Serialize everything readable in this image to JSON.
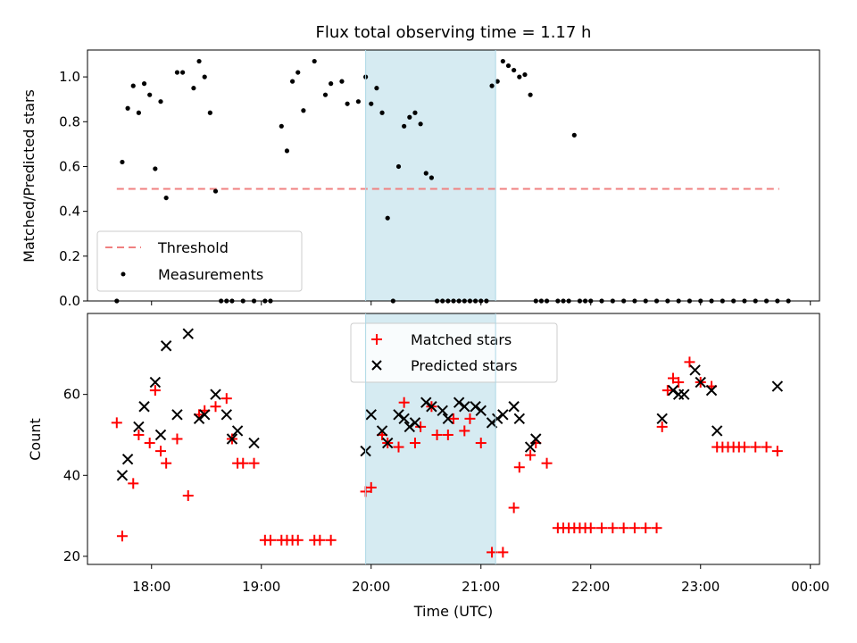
{
  "chart_data": [
    {
      "type": "scatter",
      "title": "Flux total observing time = 1.17 h",
      "xlabel": "",
      "ylabel": "Matched/Predicted stars",
      "xlim": [
        "17:25",
        "00:05"
      ],
      "ylim": [
        0,
        1.12
      ],
      "x_ticks": [
        "18:00",
        "19:00",
        "20:00",
        "21:00",
        "22:00",
        "23:00",
        "00:00"
      ],
      "y_ticks": [
        "0.0",
        "0.2",
        "0.4",
        "0.6",
        "0.8",
        "1.0"
      ],
      "legend_position": "lower-left",
      "shaded_interval": [
        "19:57",
        "21:08"
      ],
      "shade_color": "#add8e6",
      "threshold": {
        "name": "Threshold",
        "value": 0.5,
        "x_start": "17:41",
        "x_end": "23:43",
        "color": "#f08080",
        "style": "dashed"
      },
      "series": [
        {
          "name": "Measurements",
          "color": "#000000",
          "marker": "dot",
          "x": [
            "17:41",
            "17:44",
            "17:47",
            "17:50",
            "17:53",
            "17:56",
            "17:59",
            "18:02",
            "18:05",
            "18:08",
            "18:14",
            "18:17",
            "18:23",
            "18:26",
            "18:29",
            "18:32",
            "18:35",
            "18:38",
            "18:41",
            "18:44",
            "18:50",
            "18:56",
            "19:02",
            "19:05",
            "19:11",
            "19:14",
            "19:17",
            "19:20",
            "19:23",
            "19:29",
            "19:35",
            "19:38",
            "19:44",
            "19:47",
            "19:53",
            "19:57",
            "20:00",
            "20:03",
            "20:06",
            "20:09",
            "20:12",
            "20:15",
            "20:18",
            "20:21",
            "20:24",
            "20:27",
            "20:30",
            "20:33",
            "20:36",
            "20:39",
            "20:42",
            "20:45",
            "20:48",
            "20:51",
            "20:54",
            "20:57",
            "21:00",
            "21:03",
            "21:06",
            "21:09",
            "21:12",
            "21:15",
            "21:18",
            "21:21",
            "21:24",
            "21:27",
            "21:30",
            "21:33",
            "21:36",
            "21:42",
            "21:45",
            "21:48",
            "21:51",
            "21:54",
            "21:57",
            "22:00",
            "22:06",
            "22:12",
            "22:18",
            "22:24",
            "22:30",
            "22:36",
            "22:42",
            "22:48",
            "22:54",
            "23:00",
            "23:06",
            "23:12",
            "23:18",
            "23:24",
            "23:30",
            "23:36",
            "23:42",
            "23:48"
          ],
          "y": [
            0.0,
            0.62,
            0.86,
            0.96,
            0.84,
            0.97,
            0.92,
            0.59,
            0.89,
            0.46,
            1.02,
            1.02,
            0.95,
            1.07,
            1.0,
            0.84,
            0.49,
            0.0,
            0.0,
            0.0,
            0.0,
            0.0,
            0.0,
            0.0,
            0.78,
            0.67,
            0.98,
            1.02,
            0.85,
            1.07,
            0.92,
            0.97,
            0.98,
            0.88,
            0.89,
            1.0,
            0.88,
            0.95,
            0.84,
            0.37,
            0.0,
            0.6,
            0.78,
            0.82,
            0.84,
            0.79,
            0.57,
            0.55,
            0.0,
            0.0,
            0.0,
            0.0,
            0.0,
            0.0,
            0.0,
            0.0,
            0.0,
            0.0,
            0.96,
            0.98,
            1.07,
            1.05,
            1.03,
            1.0,
            1.01,
            0.92,
            0.0,
            0.0,
            0.0,
            0.0,
            0.0,
            0.0,
            0.74,
            0.0,
            0.0,
            0.0,
            0.0,
            0.0,
            0.0,
            0.0,
            0.0,
            0.0,
            0.0,
            0.0,
            0.0,
            0.0,
            0.0,
            0.0,
            0.0,
            0.0,
            0.0,
            0.0,
            0.0,
            0.0
          ]
        }
      ]
    },
    {
      "type": "scatter",
      "title": "",
      "xlabel": "Time (UTC)",
      "ylabel": "Count",
      "xlim": [
        "17:25",
        "00:05"
      ],
      "ylim": [
        18,
        80
      ],
      "x_ticks": [
        "18:00",
        "19:00",
        "20:00",
        "21:00",
        "22:00",
        "23:00",
        "00:00"
      ],
      "y_ticks": [
        "20",
        "40",
        "60"
      ],
      "legend_position": "upper-center",
      "shaded_interval": [
        "19:57",
        "21:08"
      ],
      "shade_color": "#add8e6",
      "series": [
        {
          "name": "Matched stars",
          "color": "#ff0000",
          "marker": "plus",
          "points": [
            [
              "17:41",
              53
            ],
            [
              "17:44",
              25
            ],
            [
              "17:50",
              38
            ],
            [
              "17:53",
              50
            ],
            [
              "17:59",
              48
            ],
            [
              "18:02",
              61
            ],
            [
              "18:05",
              46
            ],
            [
              "18:08",
              43
            ],
            [
              "18:14",
              49
            ],
            [
              "18:20",
              35
            ],
            [
              "18:26",
              55
            ],
            [
              "18:29",
              56
            ],
            [
              "18:35",
              57
            ],
            [
              "18:41",
              59
            ],
            [
              "18:44",
              49
            ],
            [
              "18:47",
              43
            ],
            [
              "18:50",
              43
            ],
            [
              "18:56",
              43
            ],
            [
              "19:02",
              24
            ],
            [
              "19:05",
              24
            ],
            [
              "19:11",
              24
            ],
            [
              "19:14",
              24
            ],
            [
              "19:17",
              24
            ],
            [
              "19:20",
              24
            ],
            [
              "19:29",
              24
            ],
            [
              "19:32",
              24
            ],
            [
              "19:38",
              24
            ],
            [
              "19:57",
              36
            ],
            [
              "20:00",
              37
            ],
            [
              "20:06",
              50
            ],
            [
              "20:09",
              48
            ],
            [
              "20:15",
              47
            ],
            [
              "20:18",
              58
            ],
            [
              "20:24",
              48
            ],
            [
              "20:27",
              52
            ],
            [
              "20:33",
              57
            ],
            [
              "20:36",
              50
            ],
            [
              "20:42",
              50
            ],
            [
              "20:45",
              54
            ],
            [
              "20:51",
              51
            ],
            [
              "20:54",
              54
            ],
            [
              "21:00",
              48
            ],
            [
              "21:06",
              21
            ],
            [
              "21:12",
              21
            ],
            [
              "21:18",
              32
            ],
            [
              "21:21",
              42
            ],
            [
              "21:27",
              45
            ],
            [
              "21:30",
              48
            ],
            [
              "21:36",
              43
            ],
            [
              "21:42",
              27
            ],
            [
              "21:45",
              27
            ],
            [
              "21:48",
              27
            ],
            [
              "21:51",
              27
            ],
            [
              "21:54",
              27
            ],
            [
              "21:57",
              27
            ],
            [
              "22:00",
              27
            ],
            [
              "22:06",
              27
            ],
            [
              "22:12",
              27
            ],
            [
              "22:18",
              27
            ],
            [
              "22:24",
              27
            ],
            [
              "22:30",
              27
            ],
            [
              "22:36",
              27
            ],
            [
              "22:39",
              52
            ],
            [
              "22:42",
              61
            ],
            [
              "22:45",
              64
            ],
            [
              "22:48",
              63
            ],
            [
              "22:54",
              68
            ],
            [
              "23:00",
              63
            ],
            [
              "23:06",
              62
            ],
            [
              "23:09",
              47
            ],
            [
              "23:12",
              47
            ],
            [
              "23:15",
              47
            ],
            [
              "23:18",
              47
            ],
            [
              "23:21",
              47
            ],
            [
              "23:24",
              47
            ],
            [
              "23:30",
              47
            ],
            [
              "23:36",
              47
            ],
            [
              "23:42",
              46
            ]
          ]
        },
        {
          "name": "Predicted stars",
          "color": "#000000",
          "marker": "x",
          "points": [
            [
              "17:44",
              40
            ],
            [
              "17:47",
              44
            ],
            [
              "17:53",
              52
            ],
            [
              "17:56",
              57
            ],
            [
              "18:02",
              63
            ],
            [
              "18:05",
              50
            ],
            [
              "18:08",
              72
            ],
            [
              "18:14",
              55
            ],
            [
              "18:20",
              75
            ],
            [
              "18:26",
              54
            ],
            [
              "18:29",
              55
            ],
            [
              "18:35",
              60
            ],
            [
              "18:41",
              55
            ],
            [
              "18:44",
              49
            ],
            [
              "18:47",
              51
            ],
            [
              "18:56",
              48
            ],
            [
              "19:57",
              46
            ],
            [
              "20:00",
              55
            ],
            [
              "20:06",
              51
            ],
            [
              "20:09",
              48
            ],
            [
              "20:15",
              55
            ],
            [
              "20:18",
              54
            ],
            [
              "20:21",
              52
            ],
            [
              "20:24",
              53
            ],
            [
              "20:30",
              58
            ],
            [
              "20:33",
              57
            ],
            [
              "20:39",
              56
            ],
            [
              "20:42",
              54
            ],
            [
              "20:48",
              58
            ],
            [
              "20:51",
              57
            ],
            [
              "20:57",
              57
            ],
            [
              "21:00",
              56
            ],
            [
              "21:06",
              53
            ],
            [
              "21:09",
              54
            ],
            [
              "21:12",
              55
            ],
            [
              "21:18",
              57
            ],
            [
              "21:21",
              54
            ],
            [
              "21:27",
              47
            ],
            [
              "21:30",
              49
            ],
            [
              "22:39",
              54
            ],
            [
              "22:45",
              61
            ],
            [
              "22:48",
              60
            ],
            [
              "22:51",
              60
            ],
            [
              "22:57",
              66
            ],
            [
              "23:00",
              63
            ],
            [
              "23:06",
              61
            ],
            [
              "23:09",
              51
            ],
            [
              "23:42",
              62
            ]
          ]
        }
      ]
    }
  ]
}
